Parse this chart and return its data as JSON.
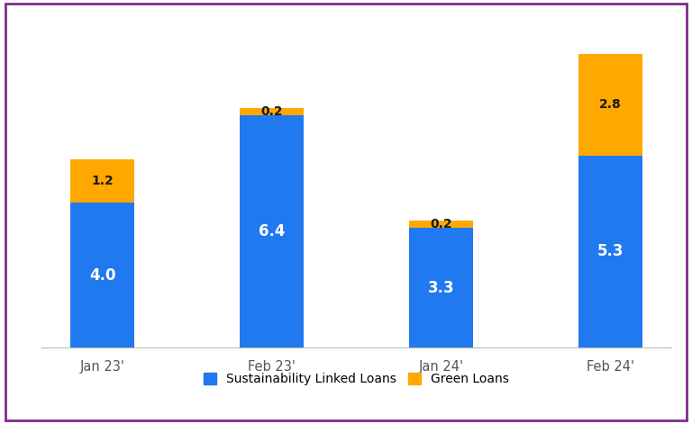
{
  "categories": [
    "Jan 23'",
    "Feb 23'",
    "Jan 24'",
    "Feb 24'"
  ],
  "sustainability_linked_loans": [
    4.0,
    6.4,
    3.3,
    5.3
  ],
  "green_loans": [
    1.2,
    0.2,
    0.2,
    2.8
  ],
  "bar_color_blue": "#2079EF",
  "bar_color_orange": "#FFA800",
  "label_blue": "Sustainability Linked Loans",
  "label_orange": "Green Loans",
  "background_color": "#FFFFFF",
  "border_color": "#7B2D8B",
  "ylim": [
    0,
    9.0
  ],
  "bar_width": 0.38,
  "tick_fontsize": 10.5,
  "value_fontsize_blue": 12,
  "value_fontsize_orange": 10,
  "legend_fontsize": 10
}
